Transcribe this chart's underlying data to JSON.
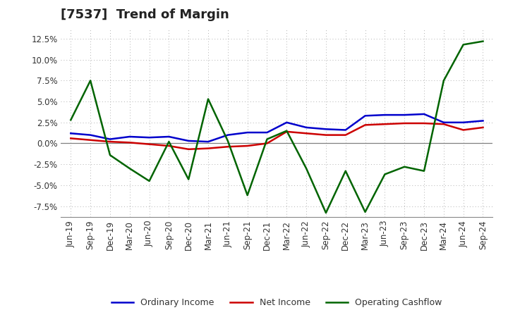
{
  "title": "[7537]  Trend of Margin",
  "x_labels": [
    "Jun-19",
    "Sep-19",
    "Dec-19",
    "Mar-20",
    "Jun-20",
    "Sep-20",
    "Dec-20",
    "Mar-21",
    "Jun-21",
    "Sep-21",
    "Dec-21",
    "Mar-22",
    "Jun-22",
    "Sep-22",
    "Dec-22",
    "Mar-23",
    "Jun-23",
    "Sep-23",
    "Dec-23",
    "Mar-24",
    "Jun-24",
    "Sep-24"
  ],
  "ordinary_income": [
    1.2,
    1.0,
    0.5,
    0.8,
    0.7,
    0.8,
    0.3,
    0.2,
    1.0,
    1.3,
    1.3,
    2.5,
    1.9,
    1.7,
    1.6,
    3.3,
    3.4,
    3.4,
    3.5,
    2.5,
    2.5,
    2.7
  ],
  "net_income": [
    0.6,
    0.4,
    0.2,
    0.1,
    -0.1,
    -0.3,
    -0.7,
    -0.6,
    -0.4,
    -0.3,
    0.0,
    1.4,
    1.2,
    1.0,
    1.0,
    2.2,
    2.3,
    2.4,
    2.4,
    2.3,
    1.6,
    1.9
  ],
  "operating_cashflow": [
    2.8,
    7.5,
    -1.4,
    -3.0,
    -4.5,
    0.2,
    -4.3,
    5.3,
    0.3,
    -6.2,
    0.5,
    1.5,
    -3.0,
    -8.3,
    -3.3,
    -8.2,
    -3.7,
    -2.8,
    -3.3,
    7.5,
    11.8,
    12.2
  ],
  "ylim": [
    -8.8,
    13.8
  ],
  "yticks": [
    -7.5,
    -5.0,
    -2.5,
    0.0,
    2.5,
    5.0,
    7.5,
    10.0,
    12.5
  ],
  "colors": {
    "ordinary_income": "#0000cc",
    "net_income": "#cc0000",
    "operating_cashflow": "#006400",
    "grid": "#b0b0b0",
    "background": "#ffffff",
    "zero_line": "#808080"
  },
  "legend": {
    "ordinary_income": "Ordinary Income",
    "net_income": "Net Income",
    "operating_cashflow": "Operating Cashflow"
  },
  "title_fontsize": 13,
  "tick_fontsize": 8.5,
  "legend_fontsize": 9
}
